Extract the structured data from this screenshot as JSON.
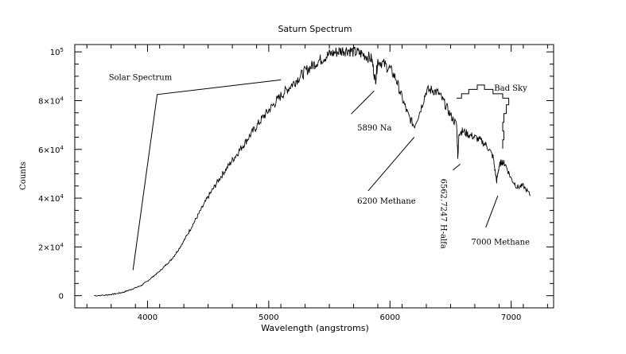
{
  "chart_data": {
    "type": "line",
    "title": "Saturn Spectrum",
    "xlabel": "Wavelength (angstroms)",
    "ylabel": "Counts",
    "xlim": [
      3400,
      7350
    ],
    "ylim": [
      -5000,
      103000
    ],
    "x_ticks": [
      {
        "value": 4000,
        "label": "4000"
      },
      {
        "value": 5000,
        "label": "5000"
      },
      {
        "value": 6000,
        "label": "6000"
      },
      {
        "value": 7000,
        "label": "7000"
      }
    ],
    "y_ticks": [
      {
        "value": 0,
        "label": "0",
        "base": "0",
        "exp": ""
      },
      {
        "value": 20000,
        "label": "2×10⁴",
        "base": "2×10",
        "exp": "4"
      },
      {
        "value": 40000,
        "label": "4×10⁴",
        "base": "4×10",
        "exp": "4"
      },
      {
        "value": 60000,
        "label": "6×10⁴",
        "base": "6×10",
        "exp": "4"
      },
      {
        "value": 80000,
        "label": "8×10⁴",
        "base": "8×10",
        "exp": "4"
      },
      {
        "value": 100000,
        "label": "10⁵",
        "base": "10",
        "exp": "5"
      }
    ],
    "grid": false,
    "series": [
      {
        "name": "",
        "x": [
          3560,
          3650,
          3700,
          3750,
          3800,
          3850,
          3900,
          3950,
          4000,
          4050,
          4100,
          4150,
          4200,
          4250,
          4300,
          4350,
          4400,
          4450,
          4500,
          4550,
          4600,
          4650,
          4700,
          4750,
          4800,
          4850,
          4900,
          4950,
          5000,
          5050,
          5100,
          5150,
          5200,
          5250,
          5300,
          5350,
          5400,
          5450,
          5500,
          5550,
          5600,
          5650,
          5700,
          5750,
          5800,
          5850,
          5880,
          5900,
          5950,
          6000,
          6050,
          6100,
          6150,
          6200,
          6250,
          6300,
          6350,
          6400,
          6450,
          6500,
          6550,
          6560,
          6570,
          6600,
          6650,
          6700,
          6750,
          6800,
          6850,
          6880,
          6900,
          6920,
          6950,
          7000,
          7050,
          7100,
          7160
        ],
        "y": [
          0,
          200,
          500,
          900,
          1400,
          2300,
          3200,
          4200,
          6000,
          8000,
          10000,
          12500,
          15000,
          18500,
          22500,
          27000,
          31500,
          36000,
          40500,
          44500,
          48500,
          52000,
          55500,
          59000,
          62500,
          66000,
          69500,
          73000,
          76000,
          79000,
          82000,
          84500,
          87000,
          89500,
          92000,
          94000,
          96000,
          97500,
          99000,
          99800,
          100500,
          100800,
          100000,
          99500,
          98500,
          97000,
          88000,
          96500,
          95000,
          93000,
          89000,
          81000,
          74000,
          69500,
          76000,
          84000,
          84500,
          83000,
          79000,
          74000,
          70000,
          57000,
          67000,
          67500,
          66000,
          65000,
          63500,
          61500,
          57000,
          47000,
          53000,
          55000,
          54000,
          48000,
          44500,
          45000,
          41000
        ]
      }
    ],
    "bad_sky": {
      "label": "Bad Sky",
      "points": [
        [
          6550,
          81000
        ],
        [
          6590,
          81000
        ],
        [
          6590,
          82800
        ],
        [
          6650,
          82800
        ],
        [
          6650,
          84600
        ],
        [
          6720,
          84600
        ],
        [
          6720,
          86400
        ],
        [
          6780,
          86400
        ],
        [
          6780,
          84600
        ],
        [
          6850,
          84600
        ],
        [
          6850,
          82800
        ],
        [
          6930,
          82800
        ],
        [
          6930,
          81000
        ],
        [
          6980,
          81000
        ],
        [
          6980,
          78300
        ],
        [
          6960,
          78300
        ],
        [
          6960,
          74700
        ],
        [
          6940,
          74700
        ],
        [
          6940,
          71100
        ],
        [
          6930,
          71100
        ],
        [
          6930,
          67500
        ],
        [
          6940,
          67500
        ],
        [
          6940,
          63900
        ],
        [
          6930,
          63900
        ],
        [
          6930,
          60300
        ]
      ]
    },
    "annotations": [
      {
        "text": "Solar Spectrum",
        "x": 3680,
        "y": 88500,
        "rotate": false,
        "line": [
          [
            3880,
            10500
          ],
          [
            4080,
            82500
          ],
          [
            5100,
            88500
          ]
        ]
      },
      {
        "text": "5890 Na",
        "x": 5730,
        "y": 67800,
        "rotate": false,
        "line": [
          [
            5680,
            74500
          ],
          [
            5870,
            84000
          ]
        ]
      },
      {
        "text": "6200 Methane",
        "x": 5730,
        "y": 37800,
        "rotate": false,
        "line": [
          [
            5820,
            43000
          ],
          [
            6200,
            65000
          ]
        ]
      },
      {
        "text": "6562.7247 H-alfa",
        "x": 6420,
        "y": 48000,
        "rotate": true,
        "line": [
          [
            6520,
            51500
          ],
          [
            6580,
            54000
          ]
        ]
      },
      {
        "text": "7000 Methane",
        "x": 6670,
        "y": 21000,
        "rotate": false,
        "line": [
          [
            6790,
            28000
          ],
          [
            6890,
            41000
          ]
        ]
      },
      {
        "text": "Bad Sky",
        "x": 6860,
        "y": 84000,
        "rotate": false,
        "line": []
      }
    ]
  }
}
